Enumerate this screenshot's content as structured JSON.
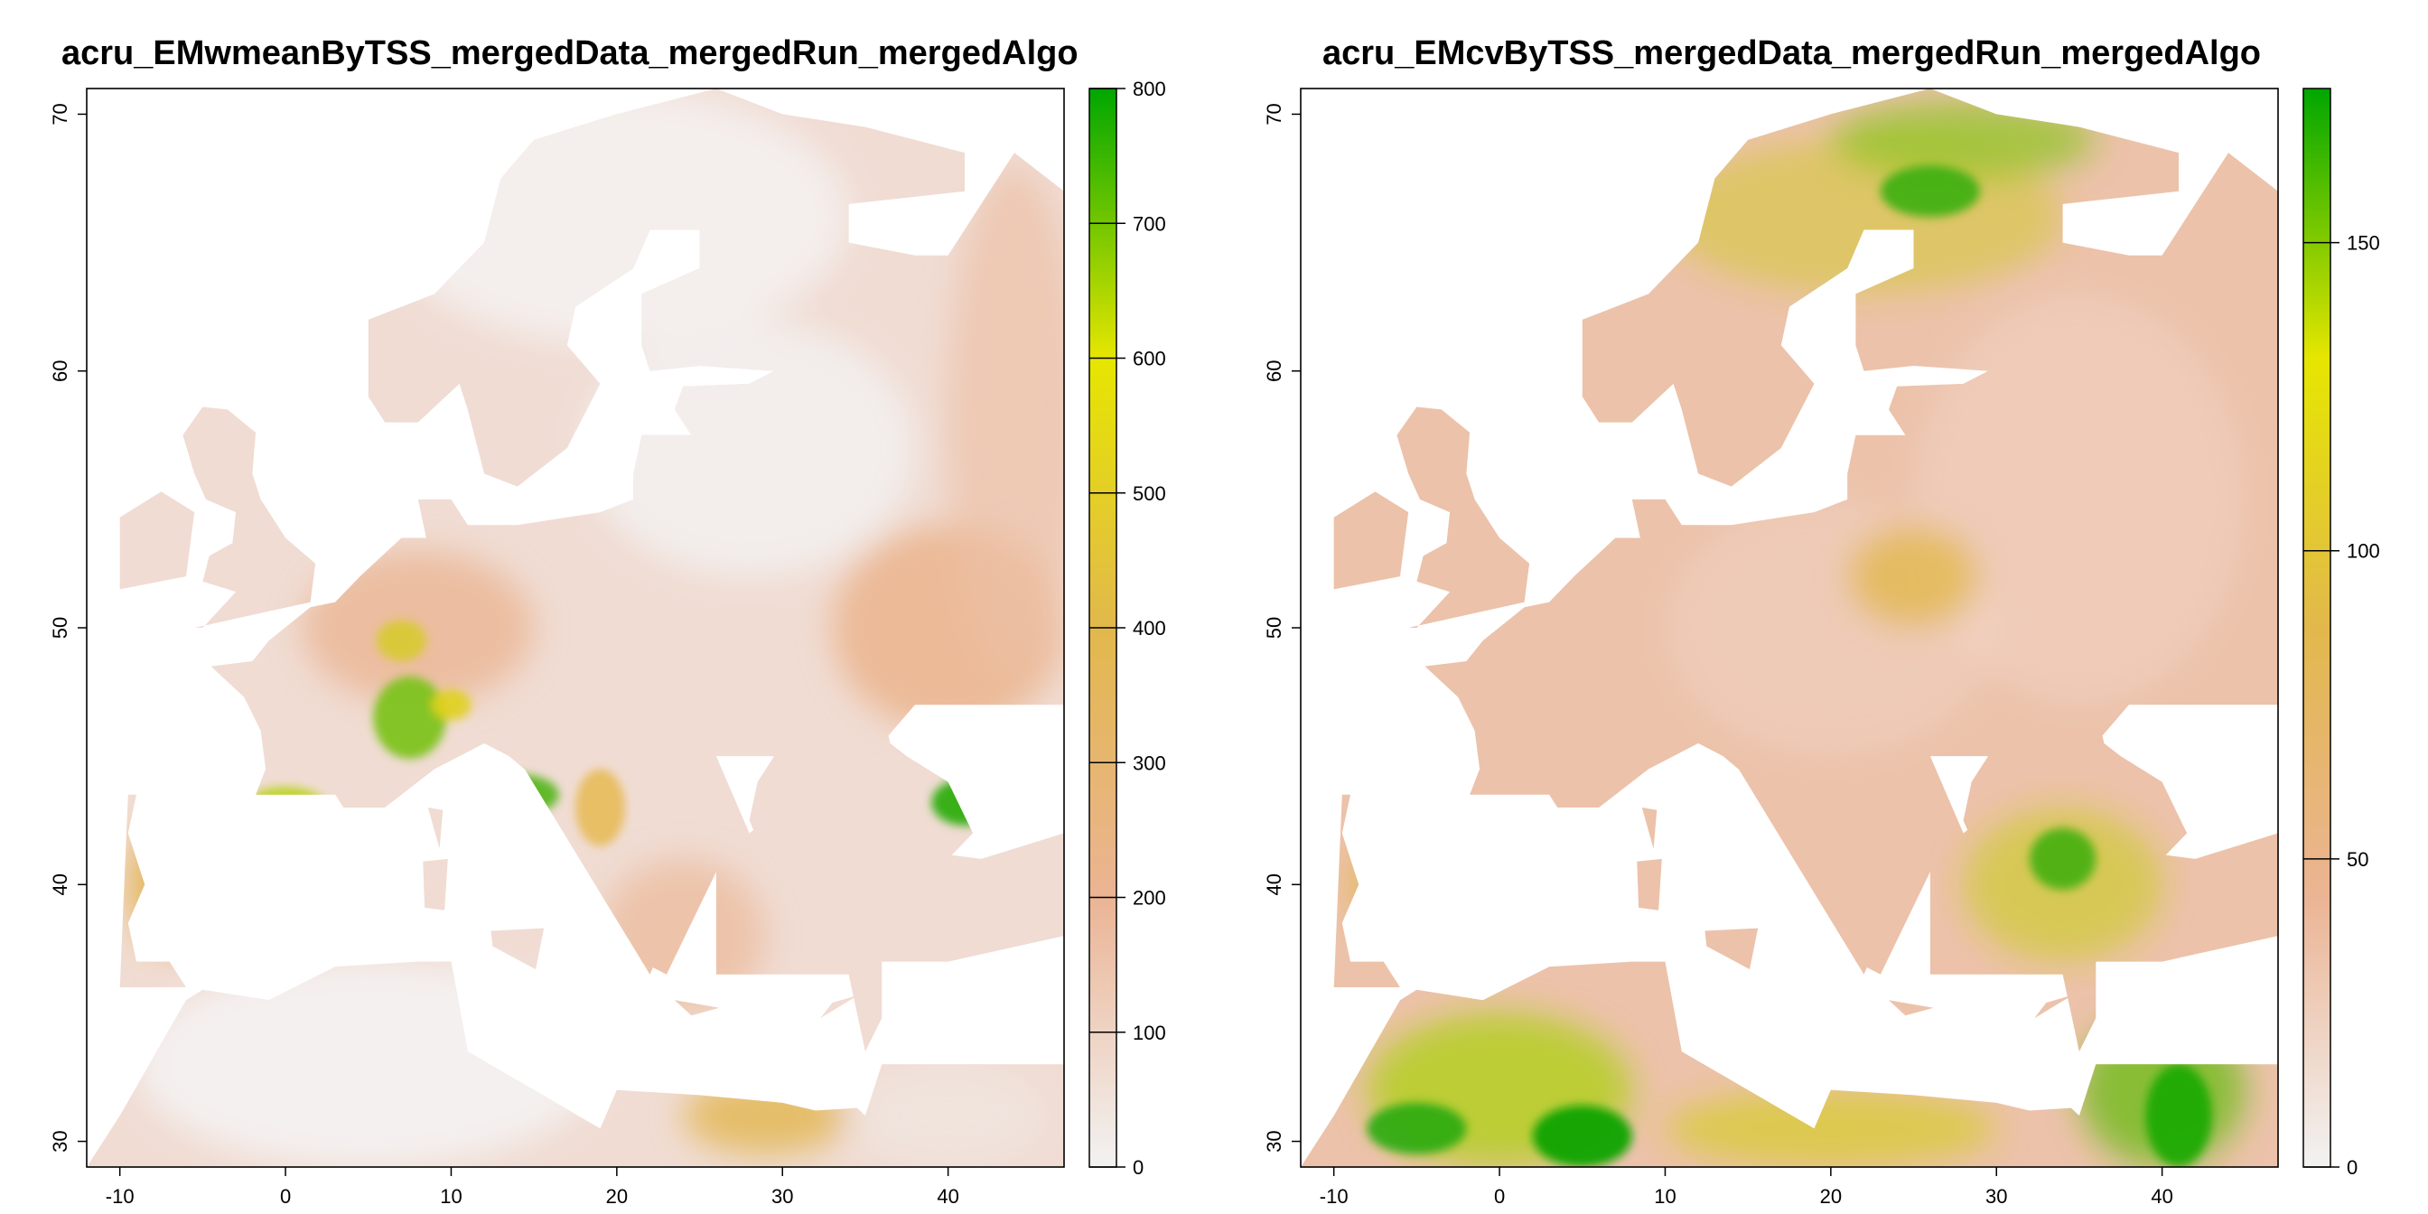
{
  "panels": [
    {
      "title": "acru_EMwmeanByTSS_mergedData_mergedRun_mergedAlgo",
      "x_ticks": [
        "-10",
        "0",
        "10",
        "20",
        "30",
        "40"
      ],
      "y_ticks": [
        "30",
        "40",
        "50",
        "60",
        "70"
      ],
      "legend_ticks": [
        "0",
        "100",
        "200",
        "300",
        "400",
        "500",
        "600",
        "700",
        "800"
      ]
    },
    {
      "title": "acru_EMcvByTSS_mergedData_mergedRun_mergedAlgo",
      "x_ticks": [
        "-10",
        "0",
        "10",
        "20",
        "30",
        "40"
      ],
      "y_ticks": [
        "30",
        "40",
        "50",
        "60",
        "70"
      ],
      "legend_ticks": [
        "0",
        "50",
        "100",
        "150"
      ]
    }
  ],
  "chart_data": [
    {
      "type": "heatmap",
      "title": "acru_EMwmeanByTSS_mergedData_mergedRun_mergedAlgo",
      "xlim": [
        -12,
        47
      ],
      "ylim": [
        29,
        71
      ],
      "x_ticks": [
        -10,
        0,
        10,
        20,
        30,
        40
      ],
      "y_ticks": [
        30,
        40,
        50,
        60,
        70
      ],
      "colorbar": {
        "min": 0,
        "max": 800,
        "ticks": [
          0,
          100,
          200,
          300,
          400,
          500,
          600,
          700,
          800
        ],
        "colors": [
          "#f2f2f2",
          "#ebb494",
          "#e2b84c",
          "#e6e600",
          "#00a600"
        ]
      },
      "high_value_regions": [
        {
          "lon": 8,
          "lat": 46,
          "value": 650
        },
        {
          "lon": 14,
          "lat": 44,
          "value": 600
        },
        {
          "lon": 41,
          "lat": 43,
          "value": 650
        },
        {
          "lon": 0,
          "lat": 43,
          "value": 500
        }
      ]
    },
    {
      "type": "heatmap",
      "title": "acru_EMcvByTSS_mergedData_mergedRun_mergedAlgo",
      "xlim": [
        -12,
        47
      ],
      "ylim": [
        29,
        71
      ],
      "x_ticks": [
        -10,
        0,
        10,
        20,
        30,
        40
      ],
      "y_ticks": [
        30,
        40,
        50,
        60,
        70
      ],
      "colorbar": {
        "min": 0,
        "max": 175,
        "ticks": [
          0,
          50,
          100,
          150
        ],
        "colors": [
          "#f2f2f2",
          "#ebb494",
          "#e2b84c",
          "#e6e600",
          "#00a600"
        ]
      },
      "high_value_regions": [
        {
          "lon": 5,
          "lat": 32,
          "value": 170
        },
        {
          "lon": 40,
          "lat": 32,
          "value": 160
        },
        {
          "lon": 33,
          "lat": 40,
          "value": 150
        },
        {
          "lon": 25,
          "lat": 67,
          "value": 150
        }
      ]
    }
  ]
}
